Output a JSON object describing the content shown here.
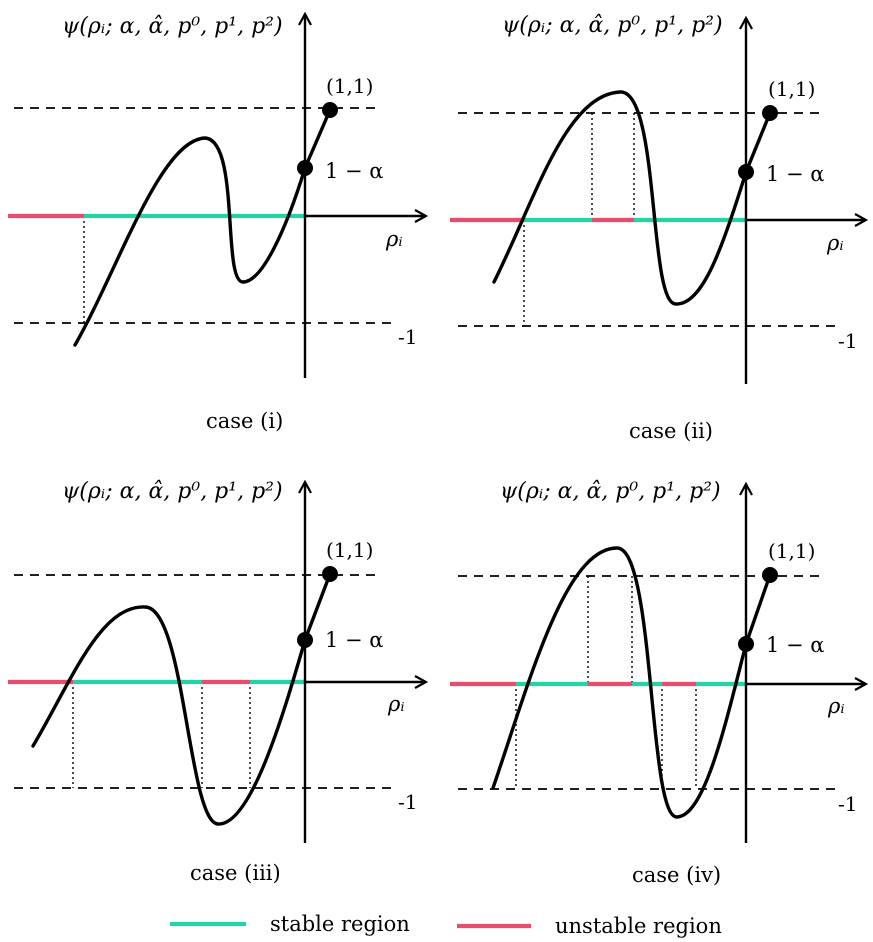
{
  "labels": {
    "y_axis": "ψ(ρᵢ; α, α̂, p⁰, p¹, p²)",
    "x_axis": "ρᵢ",
    "point_top": "(1,1)",
    "point_intercept": "1 − α",
    "lower_level": "-1"
  },
  "cases": [
    {
      "id": "case-i",
      "caption": "case (i)"
    },
    {
      "id": "case-ii",
      "caption": "case (ii)"
    },
    {
      "id": "case-iii",
      "caption": "case (iii)"
    },
    {
      "id": "case-iv",
      "caption": "case (iv)"
    }
  ],
  "legend": {
    "stable": "stable region",
    "unstable": "unstable region"
  },
  "colors": {
    "stable": "#22d3a6",
    "unstable": "#ea4c6c"
  }
}
